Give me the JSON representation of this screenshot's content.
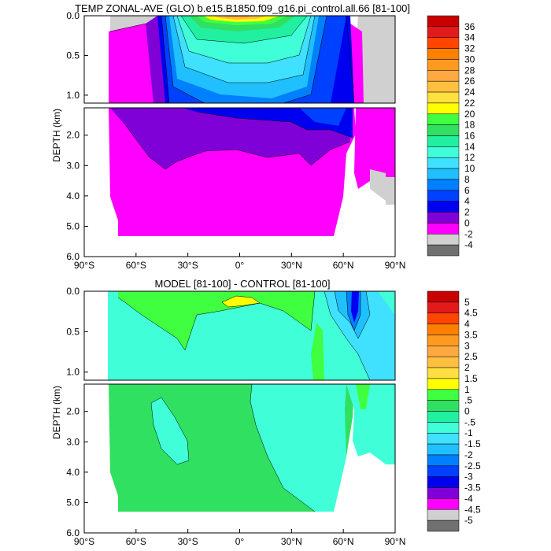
{
  "chart_data": [
    {
      "type": "heatmap",
      "title": "TEMP ZONAL-AVE (GLO) b.e15.B1850.f09_g16.pi_control.all.66 [81-100]",
      "ylabel": "DEPTH (km)",
      "x_ticks": [
        "90°S",
        "60°S",
        "30°S",
        "0°",
        "30°N",
        "60°N",
        "90°N"
      ],
      "x_values": [
        -90,
        -60,
        -30,
        0,
        30,
        60,
        90
      ],
      "xlim": [
        -90,
        90
      ],
      "y_ticks_upper": [
        "0.0",
        "0.5",
        "1.0"
      ],
      "y_ticks_lower": [
        "2.0",
        "3.0",
        "4.0",
        "5.0",
        "6.0"
      ],
      "ylim": [
        0,
        6
      ],
      "colorbar_labels": [
        "36",
        "34",
        "32",
        "30",
        "28",
        "26",
        "24",
        "22",
        "20",
        "18",
        "16",
        "14",
        "12",
        "10",
        "8",
        "6",
        "4",
        "2",
        "0",
        "-2",
        "-4"
      ],
      "colorbar_colors": [
        "#c80000",
        "#e31a1c",
        "#ff4500",
        "#ff7f00",
        "#ff9a20",
        "#ffa940",
        "#ffc040",
        "#ffe040",
        "#ffff00",
        "#40ff40",
        "#30e060",
        "#20f0a0",
        "#40ffd8",
        "#40e0ff",
        "#20c0ff",
        "#0080ff",
        "#0040ff",
        "#0000f0",
        "#8000d8",
        "#ff00ff",
        "#d0d0d0",
        "#707070"
      ]
    },
    {
      "type": "heatmap",
      "title": "MODEL [81-100] - CONTROL [81-100]",
      "ylabel": "DEPTH (km)",
      "x_ticks": [
        "90°S",
        "60°S",
        "30°S",
        "0°",
        "30°N",
        "60°N",
        "90°N"
      ],
      "x_values": [
        -90,
        -60,
        -30,
        0,
        30,
        60,
        90
      ],
      "xlim": [
        -90,
        90
      ],
      "y_ticks_upper": [
        "0.0",
        "0.5",
        "1.0"
      ],
      "y_ticks_lower": [
        "2.0",
        "3.0",
        "4.0",
        "5.0",
        "6.0"
      ],
      "ylim": [
        0,
        6
      ],
      "colorbar_labels": [
        "5",
        "4.5",
        "4",
        "3.5",
        "3",
        "2.5",
        "2",
        "1.5",
        "1",
        ".5",
        "0",
        "-.5",
        "-1",
        "-1.5",
        "-2",
        "-2.5",
        "-3",
        "-3.5",
        "-4",
        "-4.5",
        "-5"
      ],
      "colorbar_colors": [
        "#c80000",
        "#e31a1c",
        "#ff4500",
        "#ff7f00",
        "#ff9a20",
        "#ffa940",
        "#ffc040",
        "#ffe040",
        "#ffff00",
        "#40ff40",
        "#30e060",
        "#20f0a0",
        "#40ffd8",
        "#40e0ff",
        "#20c0ff",
        "#0080ff",
        "#0040ff",
        "#0000f0",
        "#8000d8",
        "#ff00ff",
        "#d0d0d0",
        "#707070"
      ]
    }
  ]
}
